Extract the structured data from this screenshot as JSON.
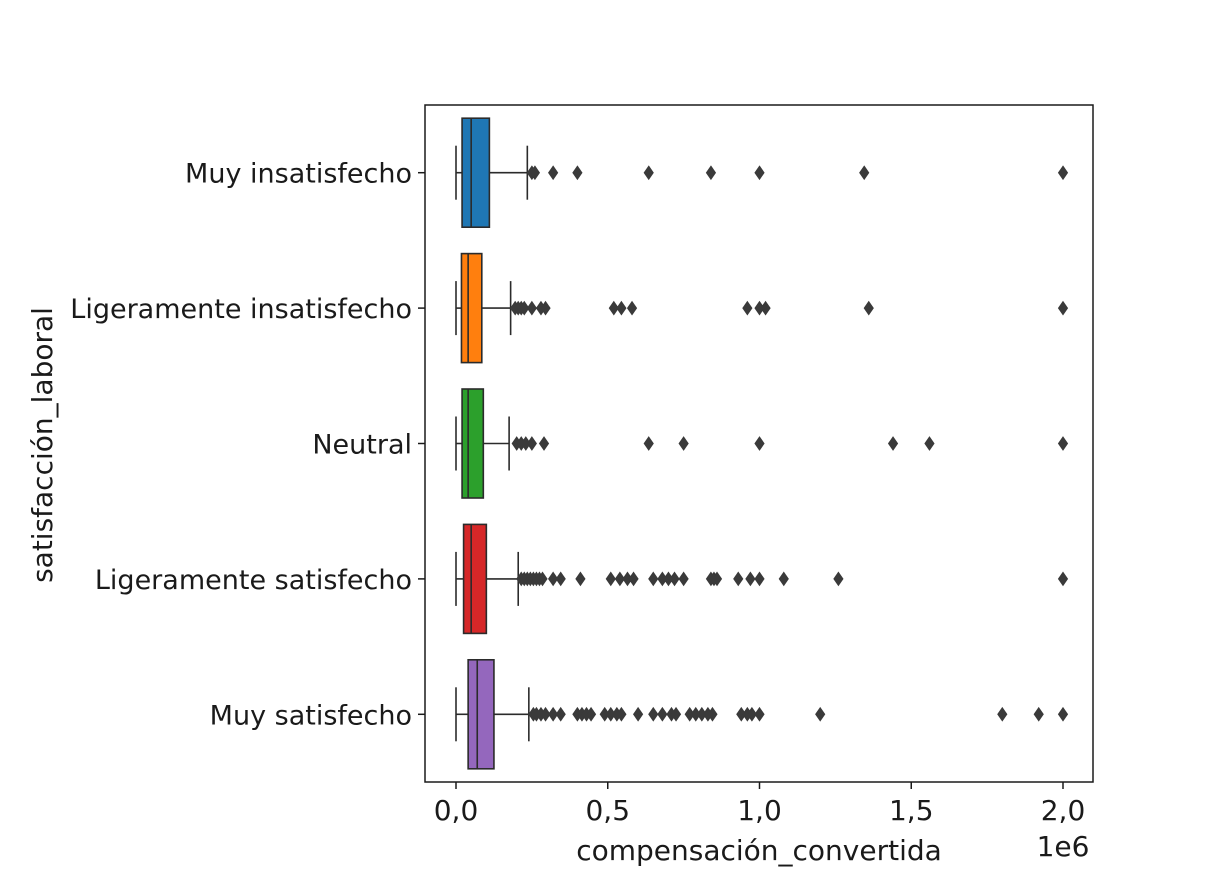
{
  "chart_data": {
    "type": "boxplot",
    "orientation": "horizontal",
    "xlabel": "compensación_convertida",
    "ylabel": "satisfacción_laboral",
    "x_offset_label": "1e6",
    "xlim": [
      -100000,
      2100000
    ],
    "xticks": [
      0,
      500000,
      1000000,
      1500000,
      2000000
    ],
    "xtick_labels": [
      "0,0",
      "0,5",
      "1,0",
      "1,5",
      "2,0"
    ],
    "grid": false,
    "categories": [
      "Muy insatisfecho",
      "Ligeramente insatisfecho",
      "Neutral",
      "Ligeramente satisfecho",
      "Muy satisfecho"
    ],
    "boxes": [
      {
        "category": "Muy insatisfecho",
        "color": "#1f77b4",
        "whisker_low": 0,
        "q1": 20000,
        "median": 50000,
        "q3": 110000,
        "whisker_high": 235000,
        "outliers": [
          250000,
          260000,
          320000,
          400000,
          635000,
          840000,
          1000000,
          1345000,
          2000000
        ]
      },
      {
        "category": "Ligeramente insatisfecho",
        "color": "#ff7f0e",
        "whisker_low": 0,
        "q1": 18000,
        "median": 40000,
        "q3": 85000,
        "whisker_high": 180000,
        "outliers": [
          195000,
          205000,
          215000,
          225000,
          250000,
          280000,
          295000,
          520000,
          545000,
          580000,
          960000,
          1000000,
          1020000,
          1360000,
          2000000
        ]
      },
      {
        "category": "Neutral",
        "color": "#2ca02c",
        "whisker_low": 0,
        "q1": 20000,
        "median": 40000,
        "q3": 90000,
        "whisker_high": 175000,
        "outliers": [
          200000,
          215000,
          230000,
          250000,
          290000,
          635000,
          750000,
          1000000,
          1440000,
          1560000,
          2000000
        ]
      },
      {
        "category": "Ligeramente satisfecho",
        "color": "#d62728",
        "whisker_low": 0,
        "q1": 25000,
        "median": 50000,
        "q3": 100000,
        "whisker_high": 205000,
        "outliers": [
          215000,
          225000,
          235000,
          245000,
          255000,
          265000,
          275000,
          285000,
          320000,
          345000,
          410000,
          510000,
          540000,
          565000,
          585000,
          650000,
          680000,
          700000,
          720000,
          750000,
          840000,
          850000,
          860000,
          930000,
          970000,
          1000000,
          1080000,
          1260000,
          2000000
        ]
      },
      {
        "category": "Muy satisfecho",
        "color": "#9467bd",
        "whisker_low": 0,
        "q1": 40000,
        "median": 70000,
        "q3": 125000,
        "whisker_high": 240000,
        "outliers": [
          255000,
          265000,
          280000,
          295000,
          320000,
          345000,
          400000,
          415000,
          430000,
          445000,
          490000,
          510000,
          530000,
          545000,
          600000,
          650000,
          680000,
          710000,
          725000,
          770000,
          790000,
          810000,
          830000,
          845000,
          940000,
          960000,
          975000,
          1000000,
          1200000,
          1800000,
          1920000,
          2000000
        ]
      }
    ]
  }
}
